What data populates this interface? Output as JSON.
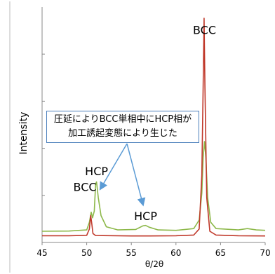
{
  "chart_data": {
    "type": "line",
    "xlabel": "θ/2θ",
    "ylabel": "Intensity",
    "xlim": [
      45,
      70
    ],
    "x_ticks": [
      "45",
      "50",
      "55",
      "60",
      "65",
      "70"
    ],
    "series": [
      {
        "color": "#c0392b",
        "points": [
          [
            45,
            3.0
          ],
          [
            48,
            3.0
          ],
          [
            50.0,
            3.2
          ],
          [
            50.3,
            6.0
          ],
          [
            50.45,
            12.0
          ],
          [
            50.55,
            9.0
          ],
          [
            50.7,
            4.0
          ],
          [
            51.0,
            3.1
          ],
          [
            55,
            2.9
          ],
          [
            57,
            2.9
          ],
          [
            60,
            3.0
          ],
          [
            62.0,
            3.3
          ],
          [
            62.6,
            6.0
          ],
          [
            62.9,
            30.0
          ],
          [
            63.05,
            70.0
          ],
          [
            63.15,
            100.0
          ],
          [
            63.25,
            70.0
          ],
          [
            63.45,
            20.0
          ],
          [
            63.8,
            5.0
          ],
          [
            64.5,
            3.3
          ],
          [
            67,
            3.0
          ],
          [
            70,
            2.9
          ]
        ]
      },
      {
        "color": "#8db84a",
        "points": [
          [
            45,
            5.0
          ],
          [
            48,
            5.1
          ],
          [
            50.0,
            5.6
          ],
          [
            50.3,
            9.0
          ],
          [
            50.5,
            13.5
          ],
          [
            50.65,
            11.0
          ],
          [
            50.85,
            14.0
          ],
          [
            51.0,
            26.0
          ],
          [
            51.1,
            27.0
          ],
          [
            51.3,
            20.0
          ],
          [
            51.6,
            12.0
          ],
          [
            52.2,
            7.0
          ],
          [
            53.5,
            5.6
          ],
          [
            55.5,
            5.8
          ],
          [
            56.3,
            7.4
          ],
          [
            56.6,
            7.6
          ],
          [
            57.0,
            6.8
          ],
          [
            58.0,
            5.6
          ],
          [
            60,
            5.4
          ],
          [
            62.0,
            6.2
          ],
          [
            62.6,
            10.0
          ],
          [
            62.9,
            22.0
          ],
          [
            63.05,
            38.0
          ],
          [
            63.2,
            45.0
          ],
          [
            63.35,
            38.0
          ],
          [
            63.55,
            20.0
          ],
          [
            63.9,
            9.0
          ],
          [
            64.5,
            6.2
          ],
          [
            67,
            5.6
          ],
          [
            68.0,
            6.2
          ],
          [
            69,
            5.6
          ],
          [
            70,
            5.4
          ]
        ]
      }
    ],
    "annotations": [
      {
        "text": "BCC",
        "x": 63.2,
        "y": 93
      },
      {
        "text": "HCP",
        "x": 51.1,
        "y": 30
      },
      {
        "text": "BCC",
        "x": 49.8,
        "y": 23
      },
      {
        "text": "HCP",
        "x": 56.6,
        "y": 10
      }
    ],
    "callout_lines": [
      "圧延によりBCC単相中にHCP相が",
      "加工誘起変態により生じた"
    ]
  }
}
